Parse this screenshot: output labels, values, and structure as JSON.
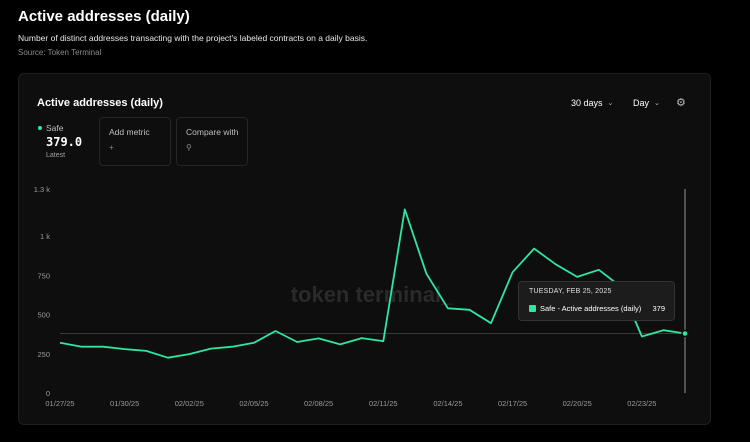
{
  "page": {
    "title": "Active addresses (daily)",
    "subtitle": "Number of distinct addresses transacting with the project's labeled contracts on a daily basis.",
    "source": "Source: Token Terminal"
  },
  "card": {
    "title": "Active addresses (daily)",
    "range_label": "30 days",
    "interval_label": "Day",
    "gear_icon": "gear-icon"
  },
  "metrics": {
    "safe": {
      "label": "Safe",
      "value": "379.0",
      "sub": "Latest",
      "color": "#2fe6a2"
    },
    "add": {
      "label": "Add metric",
      "icon": "+"
    },
    "compare": {
      "label": "Compare with",
      "icon": "search-icon"
    }
  },
  "watermark": "token terminal_",
  "tooltip": {
    "date": "TUESDAY, FEB 25, 2025",
    "series": "Safe - Active addresses (daily)",
    "value": "379"
  },
  "chart_data": {
    "type": "line",
    "ylim": [
      0,
      1300
    ],
    "yticks": [
      0,
      250,
      500,
      750,
      1000,
      1300
    ],
    "ytick_labels": [
      "0",
      "250",
      "500",
      "750",
      "1 k",
      "1.3 k"
    ],
    "xtick_labels": [
      "01/27/25",
      "01/30/25",
      "02/02/25",
      "02/05/25",
      "02/08/25",
      "02/11/25",
      "02/14/25",
      "02/17/25",
      "02/20/25",
      "02/23/25"
    ],
    "x": [
      "01/27/25",
      "01/28/25",
      "01/29/25",
      "01/30/25",
      "01/31/25",
      "02/01/25",
      "02/02/25",
      "02/03/25",
      "02/04/25",
      "02/05/25",
      "02/06/25",
      "02/07/25",
      "02/08/25",
      "02/09/25",
      "02/10/25",
      "02/11/25",
      "02/12/25",
      "02/13/25",
      "02/14/25",
      "02/15/25",
      "02/16/25",
      "02/17/25",
      "02/18/25",
      "02/19/25",
      "02/20/25",
      "02/21/25",
      "02/22/25",
      "02/23/25",
      "02/24/25",
      "02/25/25"
    ],
    "series": [
      {
        "name": "Safe",
        "color": "#2fe6a2",
        "values": [
          320,
          295,
          295,
          280,
          268,
          225,
          248,
          283,
          295,
          320,
          395,
          325,
          348,
          310,
          350,
          330,
          1170,
          760,
          540,
          530,
          445,
          770,
          920,
          820,
          740,
          785,
          680,
          360,
          400,
          379
        ]
      }
    ],
    "latest_line_value": 379,
    "highlight_index": 29
  }
}
